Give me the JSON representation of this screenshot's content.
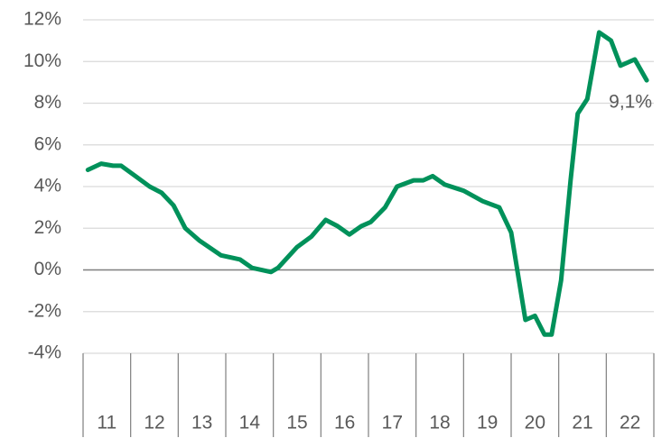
{
  "chart_data": {
    "type": "line",
    "categories": [
      "11",
      "12",
      "13",
      "14",
      "15",
      "16",
      "17",
      "18",
      "19",
      "20",
      "21",
      "22"
    ],
    "x": [
      11.1,
      11.38,
      11.63,
      11.8,
      12.1,
      12.4,
      12.65,
      12.9,
      13.15,
      13.45,
      13.9,
      14.3,
      14.55,
      14.95,
      15.1,
      15.5,
      15.8,
      16.1,
      16.35,
      16.6,
      16.85,
      17.05,
      17.35,
      17.6,
      17.95,
      18.15,
      18.35,
      18.6,
      19.0,
      19.4,
      19.75,
      20.0,
      20.3,
      20.5,
      20.7,
      20.85,
      21.05,
      21.25,
      21.4,
      21.6,
      21.85,
      22.1,
      22.3,
      22.6,
      22.85
    ],
    "series": [
      {
        "color": "#00915a",
        "values": [
          4.8,
          5.1,
          5.0,
          5.0,
          4.5,
          4.0,
          3.7,
          3.1,
          2.0,
          1.4,
          0.7,
          0.5,
          0.1,
          -0.1,
          0.1,
          1.1,
          1.6,
          2.4,
          2.1,
          1.7,
          2.1,
          2.3,
          3.0,
          4.0,
          4.3,
          4.3,
          4.5,
          4.1,
          3.8,
          3.3,
          3.0,
          1.8,
          -2.4,
          -2.2,
          -3.1,
          -3.1,
          -0.5,
          4.3,
          7.5,
          8.2,
          11.4,
          11.0,
          9.8,
          10.1,
          9.1
        ],
        "value_labels": {
          "44": "9,1%"
        }
      }
    ],
    "xlim": [
      11,
      23
    ],
    "xticks": [
      11,
      12,
      13,
      14,
      15,
      16,
      17,
      18,
      19,
      20,
      21,
      22,
      23
    ],
    "ylim": [
      -4,
      12
    ],
    "yticks": [
      {
        "value": -4,
        "label": "-4%"
      },
      {
        "value": -2,
        "label": "-2%"
      },
      {
        "value": 0,
        "label": "0%"
      },
      {
        "value": 2,
        "label": "2%"
      },
      {
        "value": 4,
        "label": "4%"
      },
      {
        "value": 6,
        "label": "6%"
      },
      {
        "value": 8,
        "label": "8%"
      },
      {
        "value": 10,
        "label": "10%"
      },
      {
        "value": 12,
        "label": "12%"
      }
    ],
    "grid": true
  }
}
